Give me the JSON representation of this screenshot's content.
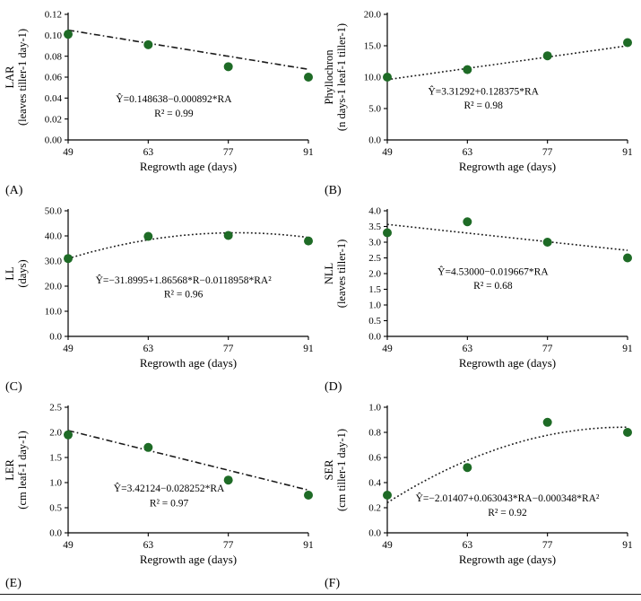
{
  "colors": {
    "point": "#1e6b26",
    "line": "#1a1a1a",
    "axis": "#000000"
  },
  "chart_data": [
    {
      "panel_label": "(A)",
      "type": "scatter",
      "xlabel": "Regrowth age (days)",
      "ylabel": [
        "LAR",
        "(leaves tiller-1 day-1)"
      ],
      "x": [
        49,
        63,
        77,
        91
      ],
      "xtick_labels": [
        "49",
        "63",
        "77",
        "91"
      ],
      "y": [
        0.101,
        0.091,
        0.07,
        0.06
      ],
      "ylim": [
        0,
        0.12
      ],
      "yticks": [
        0,
        0.02,
        0.04,
        0.06,
        0.08,
        0.1,
        0.12
      ],
      "ytick_labels": [
        "0.00",
        "0.02",
        "0.04",
        "0.06",
        "0.08",
        "0.10",
        "0.12"
      ],
      "equation": "Ŷ=0.148638−0.000892*RA",
      "r_squared": "R² = 0.99",
      "trend_coeffs": [
        0.148638,
        -0.000892,
        0
      ],
      "trend_style": "dashdot",
      "eq_pos": [
        0.44,
        0.3,
        0.185
      ]
    },
    {
      "panel_label": "(B)",
      "type": "scatter",
      "xlabel": "Regrowth age (days)",
      "ylabel": [
        "Phyllochron",
        "(n days-1 leaf-1 tiller-1)"
      ],
      "x": [
        49,
        63,
        77,
        91
      ],
      "xtick_labels": [
        "49",
        "63",
        "77",
        "91"
      ],
      "y": [
        10.0,
        11.2,
        13.4,
        15.5
      ],
      "ylim": [
        0,
        20
      ],
      "yticks": [
        0,
        5,
        10,
        15,
        20
      ],
      "ytick_labels": [
        "0.0",
        "5.0",
        "10.0",
        "15.0",
        "20.0"
      ],
      "equation": "Ŷ=3.31292+0.128375*RA",
      "r_squared": "R² = 0.98",
      "trend_coeffs": [
        3.31292,
        0.128375,
        0
      ],
      "trend_style": "dotted",
      "eq_pos": [
        0.4,
        0.36,
        0.25
      ]
    },
    {
      "panel_label": "(C)",
      "type": "scatter",
      "xlabel": "Regrowth age (days)",
      "ylabel": [
        "LL",
        "(days)"
      ],
      "x": [
        49,
        63,
        77,
        91
      ],
      "xtick_labels": [
        "49",
        "63",
        "77",
        "91"
      ],
      "y": [
        31.0,
        39.8,
        40.2,
        38.0
      ],
      "ylim": [
        0,
        50
      ],
      "yticks": [
        0,
        10,
        20,
        30,
        40,
        50
      ],
      "ytick_labels": [
        "0.0",
        "10.0",
        "20.0",
        "30.0",
        "40.0",
        "50.0"
      ],
      "equation": "Ŷ=−31.8995+1.86568*R−0.0118958*RA²",
      "r_squared": "R² = 0.96",
      "trend_coeffs": [
        -31.8995,
        1.86568,
        -0.0118958
      ],
      "trend_style": "dotted",
      "eq_pos": [
        0.48,
        0.42,
        0.31
      ]
    },
    {
      "panel_label": "(D)",
      "type": "scatter",
      "xlabel": "Regrowth age (days)",
      "ylabel": [
        "NLL",
        "(leaves tiller-1)"
      ],
      "x": [
        49,
        63,
        77,
        91
      ],
      "xtick_labels": [
        "49",
        "63",
        "77",
        "91"
      ],
      "y": [
        3.3,
        3.65,
        3.0,
        2.5
      ],
      "ylim": [
        0,
        4
      ],
      "yticks": [
        0,
        0.5,
        1,
        1.5,
        2,
        2.5,
        3,
        3.5,
        4
      ],
      "ytick_labels": [
        "0.0",
        "0.5",
        "1.0",
        "1.5",
        "2.0",
        "2.5",
        "3.0",
        "3.5",
        "4.0"
      ],
      "equation": "Ŷ=4.53000−0.019667*RA",
      "r_squared": "R² = 0.68",
      "trend_coeffs": [
        4.53,
        -0.019667,
        0
      ],
      "trend_style": "dotted",
      "eq_pos": [
        0.44,
        0.49,
        0.38
      ]
    },
    {
      "panel_label": "(E)",
      "type": "scatter",
      "xlabel": "Regrowth age (days)",
      "ylabel": [
        "LER",
        "(cm leaf-1 day-1)"
      ],
      "x": [
        49,
        63,
        77,
        91
      ],
      "xtick_labels": [
        "49",
        "63",
        "77",
        "91"
      ],
      "y": [
        1.95,
        1.7,
        1.05,
        0.75
      ],
      "ylim": [
        0,
        2.5
      ],
      "yticks": [
        0,
        0.5,
        1,
        1.5,
        2,
        2.5
      ],
      "ytick_labels": [
        "0.0",
        "0.5",
        "1.0",
        "1.5",
        "2.0",
        "2.5"
      ],
      "equation": "Ŷ=3.42124−0.028252*RA",
      "r_squared": "R² = 0.97",
      "trend_coeffs": [
        3.42124,
        -0.028252,
        0
      ],
      "trend_style": "dashdot",
      "eq_pos": [
        0.42,
        0.33,
        0.21
      ]
    },
    {
      "panel_label": "(F)",
      "type": "scatter",
      "xlabel": "Regrowth age (days)",
      "ylabel": [
        "SER",
        "(cm tiller-1 day-1)"
      ],
      "x": [
        49,
        63,
        77,
        91
      ],
      "xtick_labels": [
        "49",
        "63",
        "77",
        "91"
      ],
      "y": [
        0.3,
        0.52,
        0.88,
        0.8
      ],
      "ylim": [
        0,
        1
      ],
      "yticks": [
        0,
        0.2,
        0.4,
        0.6,
        0.8,
        1.0
      ],
      "ytick_labels": [
        "0.0",
        "0.2",
        "0.4",
        "0.6",
        "0.8",
        "1.0"
      ],
      "equation": "Ŷ=−2.01407+0.063043*RA−0.000348*RA²",
      "r_squared": "R² = 0.92",
      "trend_coeffs": [
        -2.01407,
        0.063043,
        -0.000348
      ],
      "trend_style": "dotted",
      "eq_pos": [
        0.5,
        0.25,
        0.135
      ]
    }
  ]
}
